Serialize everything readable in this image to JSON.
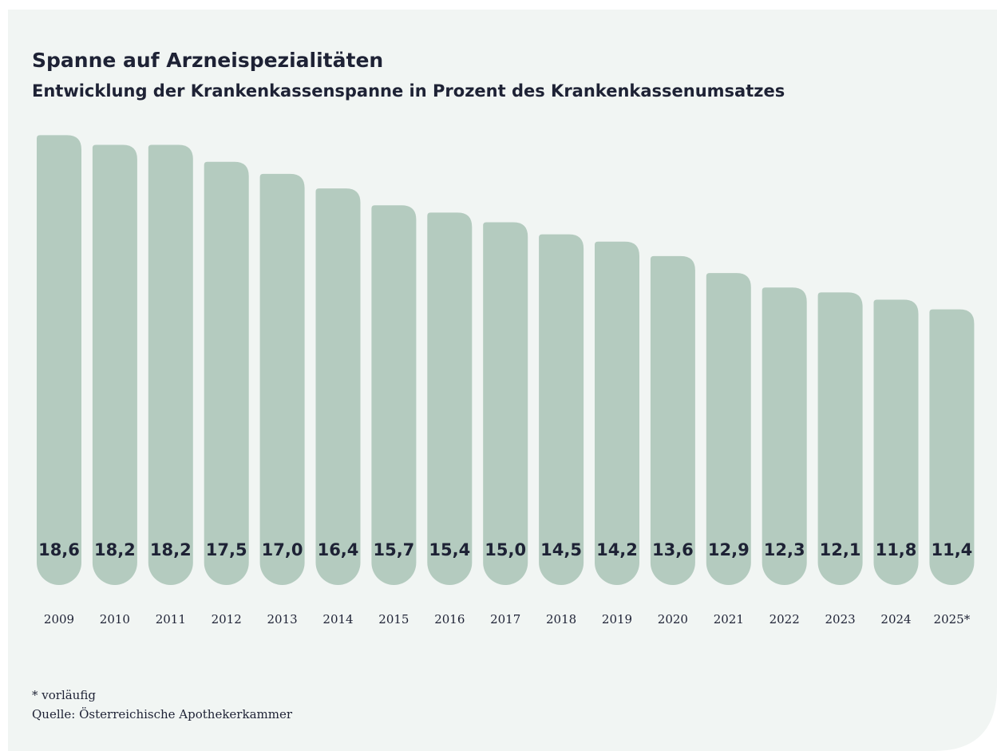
{
  "chart_data": {
    "type": "bar",
    "title": "Spanne auf Arzneispezialitäten",
    "subtitle": "Entwicklung der Krankenkassenspanne in Prozent des Krankenkassenumsatzes",
    "categories": [
      "2009",
      "2010",
      "2011",
      "2012",
      "2013",
      "2014",
      "2015",
      "2016",
      "2017",
      "2018",
      "2019",
      "2020",
      "2021",
      "2022",
      "2023",
      "2024",
      "2025*"
    ],
    "values": [
      18.6,
      18.2,
      18.2,
      17.5,
      17.0,
      16.4,
      15.7,
      15.4,
      15.0,
      14.5,
      14.2,
      13.6,
      12.9,
      12.3,
      12.1,
      11.8,
      11.4
    ],
    "value_labels": [
      "18,6",
      "18,2",
      "18,2",
      "17,5",
      "17,0",
      "16,4",
      "15,7",
      "15,4",
      "15,0",
      "14,5",
      "14,2",
      "13,6",
      "12,9",
      "12,3",
      "12,1",
      "11,8",
      "11,4"
    ],
    "color": "#b4cbbf",
    "footnote": "* vorläufig",
    "source": "Quelle: Österreichische Apothekerkammer"
  }
}
